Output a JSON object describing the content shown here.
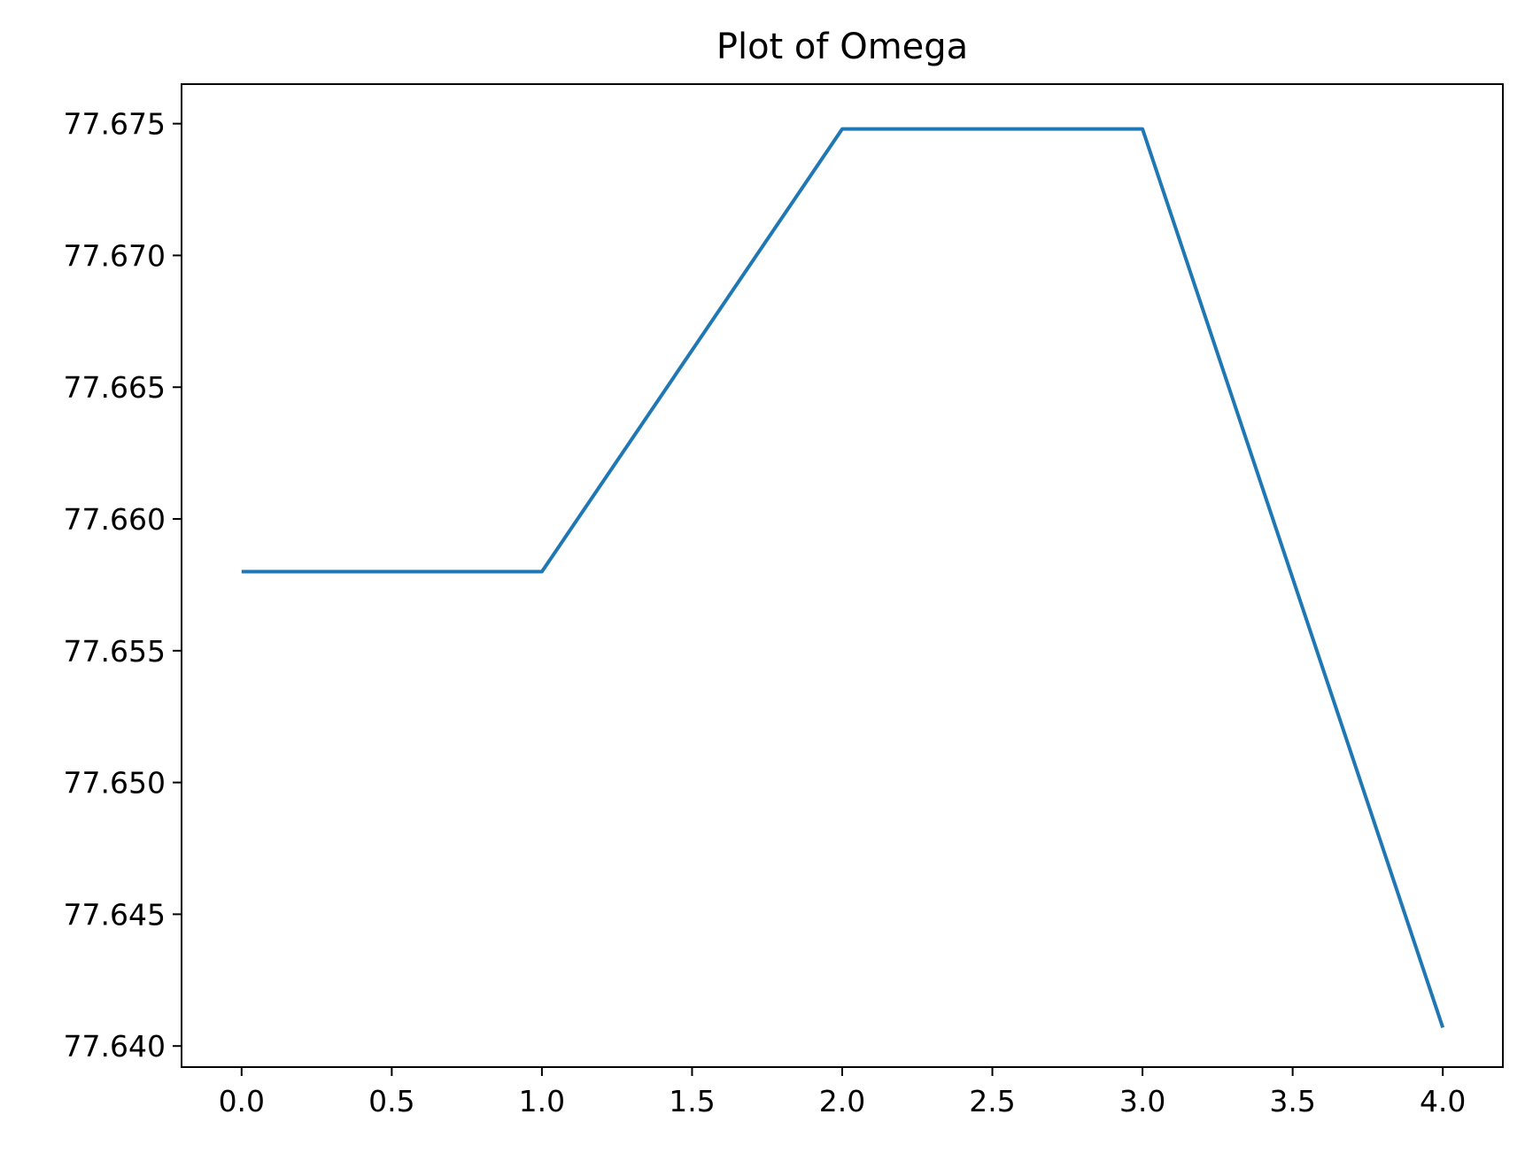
{
  "chart_data": {
    "type": "line",
    "title": "Plot of Omega",
    "xlabel": "",
    "ylabel": "",
    "x": [
      0,
      1,
      2,
      3,
      4
    ],
    "series": [
      {
        "values": [
          77.658,
          77.658,
          77.6748,
          77.6748,
          77.6407
        ],
        "color": "#1f77b4"
      }
    ],
    "xlim": [
      -0.2,
      4.2
    ],
    "ylim": [
      77.6392,
      77.6765
    ],
    "xticks": [
      0.0,
      0.5,
      1.0,
      1.5,
      2.0,
      2.5,
      3.0,
      3.5,
      4.0
    ],
    "xtick_labels": [
      "0.0",
      "0.5",
      "1.0",
      "1.5",
      "2.0",
      "2.5",
      "3.0",
      "3.5",
      "4.0"
    ],
    "yticks": [
      77.64,
      77.645,
      77.65,
      77.655,
      77.66,
      77.665,
      77.67,
      77.675
    ],
    "ytick_labels": [
      "77.640",
      "77.645",
      "77.650",
      "77.655",
      "77.660",
      "77.665",
      "77.670",
      "77.675"
    ],
    "grid": false,
    "legend": "none"
  }
}
